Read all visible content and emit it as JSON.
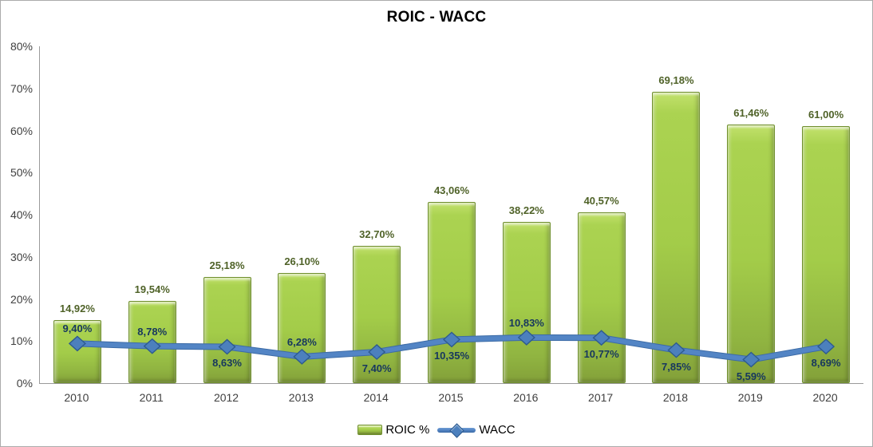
{
  "title": "ROIC - WACC",
  "legend": {
    "items": [
      {
        "label": "ROIC %",
        "swatch": "bar"
      },
      {
        "label": "WACC",
        "swatch": "line-diamond"
      }
    ]
  },
  "colors": {
    "bar_fill": "#a3cc49",
    "bar_border": "#6f8f2d",
    "line": "#5385c5",
    "marker_fill": "#4c80bd",
    "marker_border": "#2e5b8f",
    "roic_label": "#4f6228",
    "wacc_label": "#17375e",
    "axis": "#9a9a9a",
    "tick_text": "#404040"
  },
  "chart_data": {
    "type": "bar",
    "title": "ROIC - WACC",
    "categories": [
      "2010",
      "2011",
      "2012",
      "2013",
      "2014",
      "2015",
      "2016",
      "2017",
      "2018",
      "2019",
      "2020"
    ],
    "series": [
      {
        "name": "ROIC %",
        "type": "bar",
        "values": [
          14.92,
          19.54,
          25.18,
          26.1,
          32.7,
          43.06,
          38.22,
          40.57,
          69.18,
          61.46,
          61.0
        ],
        "labels": [
          "14,92%",
          "19,54%",
          "25,18%",
          "26,10%",
          "32,70%",
          "43,06%",
          "38,22%",
          "40,57%",
          "69,18%",
          "61,46%",
          "61,00%"
        ]
      },
      {
        "name": "WACC",
        "type": "line",
        "values": [
          9.4,
          8.78,
          8.63,
          6.28,
          7.4,
          10.35,
          10.83,
          10.77,
          7.85,
          5.59,
          8.69
        ],
        "labels": [
          "9,40%",
          "8,78%",
          "8,63%",
          "6,28%",
          "7,40%",
          "10,35%",
          "10,83%",
          "10,77%",
          "7,85%",
          "5,59%",
          "8,69%"
        ],
        "label_placement": [
          "above",
          "above",
          "below",
          "above",
          "below",
          "below",
          "above",
          "below",
          "below",
          "below",
          "below"
        ]
      }
    ],
    "xlabel": "",
    "ylabel": "",
    "ylim": [
      0,
      80
    ],
    "ytick_labels": [
      "0%",
      "10%",
      "20%",
      "30%",
      "40%",
      "50%",
      "60%",
      "70%",
      "80%"
    ],
    "grid": false,
    "legend_position": "bottom"
  }
}
